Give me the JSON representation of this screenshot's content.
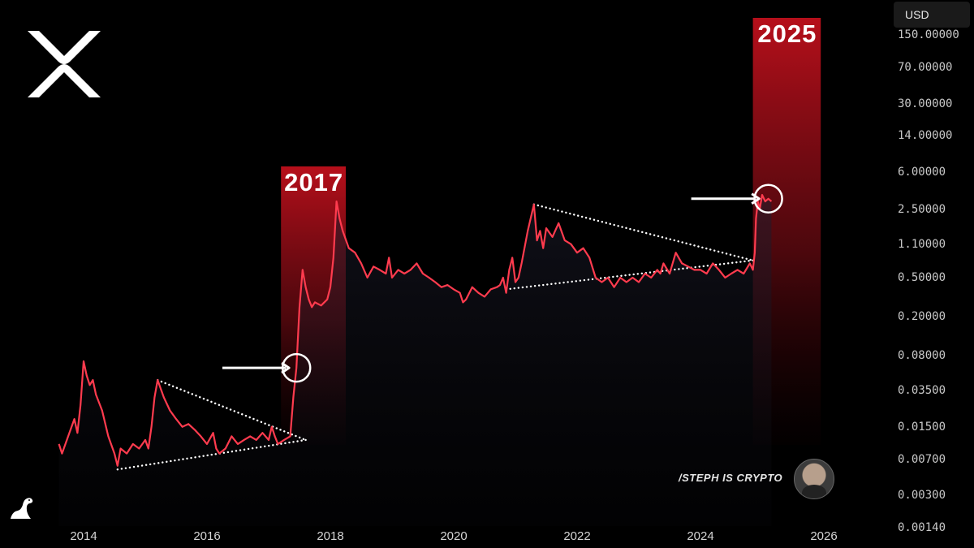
{
  "currency": "USD",
  "watermark": "/STEPH IS CRYPTO",
  "icons": {
    "logo": "xrp-logo-icon",
    "corner": "dinosaur-icon",
    "avatar": "avatar"
  },
  "colors": {
    "line": "#ff3b4e",
    "highlight": "#c0101c",
    "background": "#000000"
  },
  "chart_data": {
    "type": "line",
    "yscale": "log",
    "ylim": [
      0.0014,
      200
    ],
    "xlim": [
      2013.5,
      2026.3
    ],
    "x_ticks": [
      "2014",
      "2016",
      "2018",
      "2020",
      "2022",
      "2024",
      "2026"
    ],
    "y_ticks": [
      "150.00000",
      "70.00000",
      "30.00000",
      "14.00000",
      "6.00000",
      "2.50000",
      "1.10000",
      "0.50000",
      "0.20000",
      "0.08000",
      "0.03500",
      "0.01500",
      "0.00700",
      "0.00300",
      "0.00140"
    ],
    "series": [
      {
        "points": [
          [
            2013.6,
            0.01
          ],
          [
            2013.65,
            0.008
          ],
          [
            2013.75,
            0.012
          ],
          [
            2013.85,
            0.018
          ],
          [
            2013.9,
            0.013
          ],
          [
            2013.95,
            0.025
          ],
          [
            2014.0,
            0.07
          ],
          [
            2014.05,
            0.05
          ],
          [
            2014.1,
            0.04
          ],
          [
            2014.15,
            0.045
          ],
          [
            2014.2,
            0.032
          ],
          [
            2014.3,
            0.022
          ],
          [
            2014.4,
            0.012
          ],
          [
            2014.5,
            0.008
          ],
          [
            2014.55,
            0.006
          ],
          [
            2014.6,
            0.009
          ],
          [
            2014.7,
            0.008
          ],
          [
            2014.8,
            0.01
          ],
          [
            2014.9,
            0.009
          ],
          [
            2015.0,
            0.011
          ],
          [
            2015.05,
            0.009
          ],
          [
            2015.1,
            0.015
          ],
          [
            2015.15,
            0.03
          ],
          [
            2015.2,
            0.045
          ],
          [
            2015.3,
            0.03
          ],
          [
            2015.4,
            0.022
          ],
          [
            2015.5,
            0.018
          ],
          [
            2015.6,
            0.015
          ],
          [
            2015.7,
            0.016
          ],
          [
            2015.8,
            0.014
          ],
          [
            2015.9,
            0.012
          ],
          [
            2016.0,
            0.01
          ],
          [
            2016.1,
            0.013
          ],
          [
            2016.15,
            0.009
          ],
          [
            2016.2,
            0.008
          ],
          [
            2016.3,
            0.009
          ],
          [
            2016.4,
            0.012
          ],
          [
            2016.5,
            0.01
          ],
          [
            2016.6,
            0.011
          ],
          [
            2016.7,
            0.012
          ],
          [
            2016.8,
            0.011
          ],
          [
            2016.9,
            0.013
          ],
          [
            2017.0,
            0.011
          ],
          [
            2017.05,
            0.015
          ],
          [
            2017.1,
            0.012
          ],
          [
            2017.15,
            0.01
          ],
          [
            2017.25,
            0.011
          ],
          [
            2017.35,
            0.012
          ],
          [
            2017.4,
            0.03
          ],
          [
            2017.45,
            0.06
          ],
          [
            2017.5,
            0.25
          ],
          [
            2017.55,
            0.6
          ],
          [
            2017.6,
            0.4
          ],
          [
            2017.65,
            0.3
          ],
          [
            2017.7,
            0.25
          ],
          [
            2017.75,
            0.28
          ],
          [
            2017.85,
            0.26
          ],
          [
            2017.95,
            0.3
          ],
          [
            2018.0,
            0.4
          ],
          [
            2018.05,
            0.8
          ],
          [
            2018.1,
            3.0
          ],
          [
            2018.15,
            2.0
          ],
          [
            2018.2,
            1.5
          ],
          [
            2018.3,
            1.0
          ],
          [
            2018.4,
            0.9
          ],
          [
            2018.5,
            0.7
          ],
          [
            2018.6,
            0.5
          ],
          [
            2018.7,
            0.65
          ],
          [
            2018.8,
            0.6
          ],
          [
            2018.9,
            0.55
          ],
          [
            2018.95,
            0.8
          ],
          [
            2019.0,
            0.5
          ],
          [
            2019.1,
            0.6
          ],
          [
            2019.2,
            0.55
          ],
          [
            2019.3,
            0.6
          ],
          [
            2019.4,
            0.7
          ],
          [
            2019.5,
            0.55
          ],
          [
            2019.6,
            0.5
          ],
          [
            2019.7,
            0.45
          ],
          [
            2019.8,
            0.4
          ],
          [
            2019.9,
            0.42
          ],
          [
            2020.0,
            0.38
          ],
          [
            2020.1,
            0.35
          ],
          [
            2020.15,
            0.28
          ],
          [
            2020.2,
            0.3
          ],
          [
            2020.3,
            0.4
          ],
          [
            2020.4,
            0.35
          ],
          [
            2020.5,
            0.32
          ],
          [
            2020.6,
            0.38
          ],
          [
            2020.7,
            0.4
          ],
          [
            2020.75,
            0.42
          ],
          [
            2020.8,
            0.5
          ],
          [
            2020.85,
            0.35
          ],
          [
            2020.9,
            0.6
          ],
          [
            2020.95,
            0.8
          ],
          [
            2021.0,
            0.45
          ],
          [
            2021.05,
            0.5
          ],
          [
            2021.1,
            0.7
          ],
          [
            2021.2,
            1.5
          ],
          [
            2021.3,
            2.8
          ],
          [
            2021.35,
            1.2
          ],
          [
            2021.4,
            1.5
          ],
          [
            2021.45,
            1.0
          ],
          [
            2021.5,
            1.6
          ],
          [
            2021.6,
            1.3
          ],
          [
            2021.7,
            1.8
          ],
          [
            2021.8,
            1.2
          ],
          [
            2021.9,
            1.1
          ],
          [
            2022.0,
            0.9
          ],
          [
            2022.1,
            1.0
          ],
          [
            2022.2,
            0.8
          ],
          [
            2022.3,
            0.5
          ],
          [
            2022.4,
            0.45
          ],
          [
            2022.5,
            0.5
          ],
          [
            2022.6,
            0.4
          ],
          [
            2022.7,
            0.5
          ],
          [
            2022.8,
            0.45
          ],
          [
            2022.9,
            0.5
          ],
          [
            2023.0,
            0.45
          ],
          [
            2023.1,
            0.55
          ],
          [
            2023.2,
            0.5
          ],
          [
            2023.3,
            0.6
          ],
          [
            2023.35,
            0.55
          ],
          [
            2023.4,
            0.7
          ],
          [
            2023.5,
            0.55
          ],
          [
            2023.6,
            0.9
          ],
          [
            2023.7,
            0.7
          ],
          [
            2023.8,
            0.65
          ],
          [
            2023.9,
            0.6
          ],
          [
            2024.0,
            0.6
          ],
          [
            2024.1,
            0.55
          ],
          [
            2024.2,
            0.7
          ],
          [
            2024.3,
            0.6
          ],
          [
            2024.4,
            0.5
          ],
          [
            2024.5,
            0.55
          ],
          [
            2024.6,
            0.6
          ],
          [
            2024.7,
            0.55
          ],
          [
            2024.8,
            0.7
          ],
          [
            2024.85,
            0.6
          ],
          [
            2024.88,
            0.9
          ],
          [
            2024.9,
            2.0
          ],
          [
            2024.93,
            3.0
          ],
          [
            2024.96,
            2.5
          ],
          [
            2025.0,
            3.5
          ],
          [
            2025.05,
            3.0
          ],
          [
            2025.1,
            3.2
          ],
          [
            2025.15,
            3.0
          ]
        ]
      }
    ],
    "annotations": {
      "highlight_periods": [
        {
          "label": "2017",
          "x_start": 2017.2,
          "x_end": 2018.25
        },
        {
          "label": "2025",
          "x_start": 2024.85,
          "x_end": 2025.95
        }
      ],
      "trendlines": [
        {
          "from": [
            2015.2,
            0.045
          ],
          "to": [
            2017.6,
            0.011
          ]
        },
        {
          "from": [
            2014.55,
            0.0055
          ],
          "to": [
            2017.6,
            0.011
          ]
        },
        {
          "from": [
            2021.3,
            2.8
          ],
          "to": [
            2024.85,
            0.75
          ]
        },
        {
          "from": [
            2020.85,
            0.38
          ],
          "to": [
            2024.85,
            0.75
          ]
        }
      ],
      "circles": [
        {
          "x": 2017.45,
          "y": 0.06
        },
        {
          "x": 2025.1,
          "y": 3.2
        }
      ],
      "arrows": [
        {
          "from": [
            2016.25,
            0.06
          ],
          "to": [
            2017.33,
            0.06
          ]
        },
        {
          "from": [
            2023.85,
            3.2
          ],
          "to": [
            2024.95,
            3.2
          ]
        }
      ]
    }
  }
}
